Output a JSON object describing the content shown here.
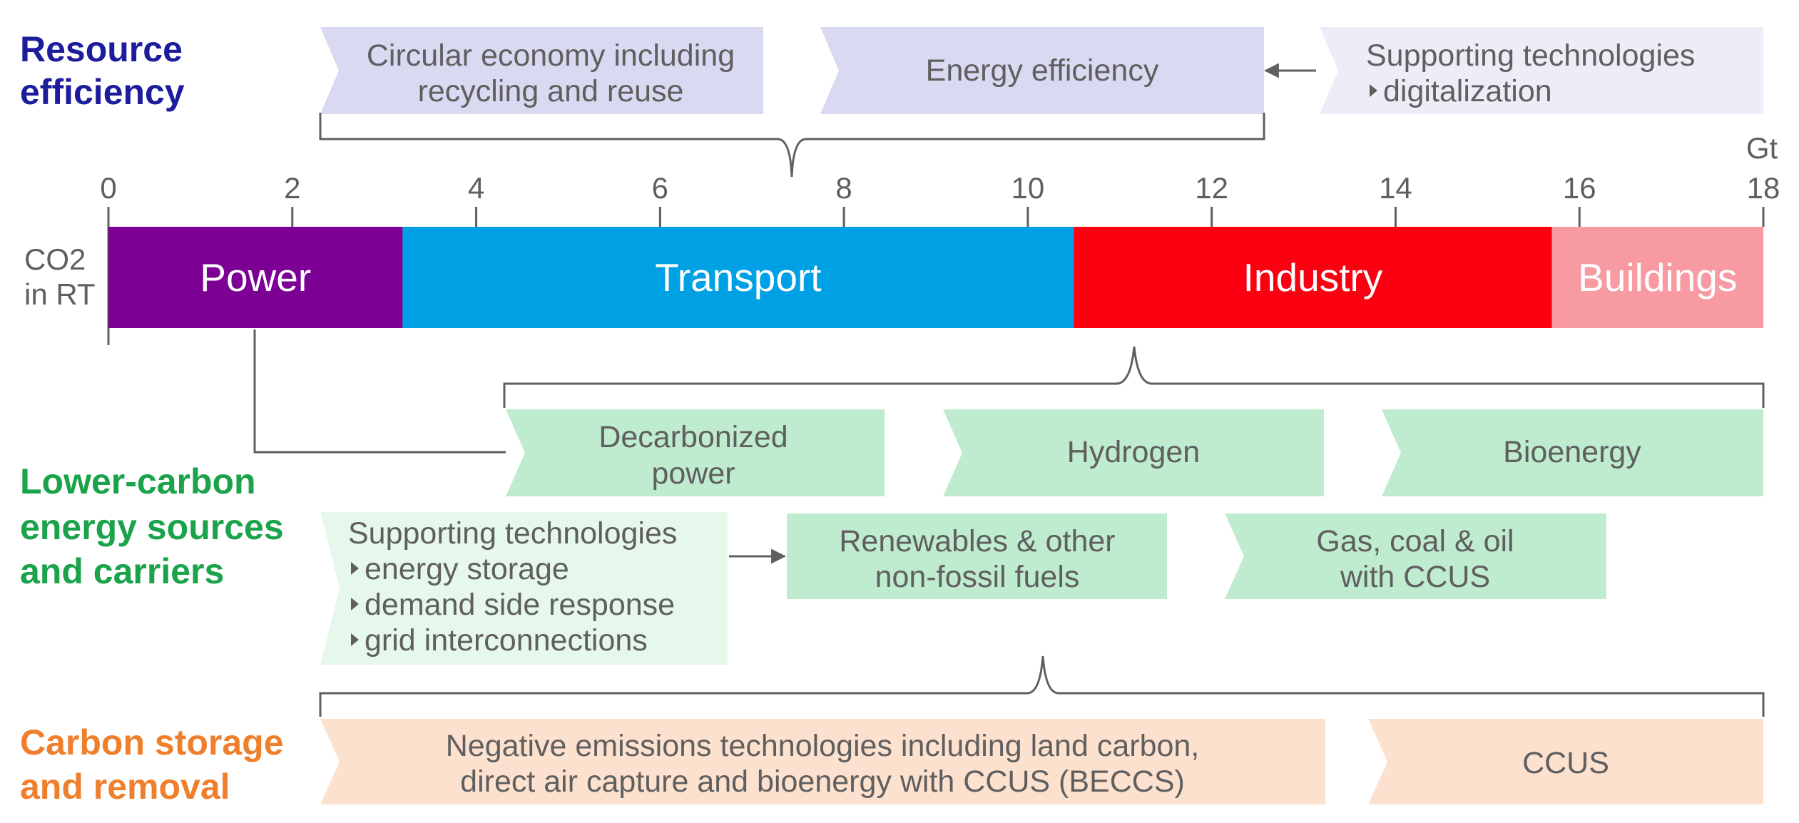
{
  "categories": {
    "resource": {
      "line1": "Resource",
      "line2": "efficiency",
      "color": "#1c1c9c"
    },
    "lower": {
      "line1": "Lower-carbon",
      "line2": "energy sources",
      "line3": "and carriers",
      "color": "#1aa34a"
    },
    "storage": {
      "line1": "Carbon storage",
      "line2": "and removal",
      "color": "#f07f2c"
    }
  },
  "axis": {
    "unit": "Gt",
    "ticks": [
      "0",
      "2",
      "4",
      "6",
      "8",
      "10",
      "12",
      "14",
      "16",
      "18"
    ],
    "bar_label_line1": "CO2",
    "bar_label_line2": "in RT",
    "min": 0,
    "max": 18
  },
  "sectors": [
    {
      "name": "Power",
      "start": 0,
      "end": 3.2,
      "color": "#7c0093"
    },
    {
      "name": "Transport",
      "start": 3.2,
      "end": 10.5,
      "color": "#00a0e4"
    },
    {
      "name": "Industry",
      "start": 10.5,
      "end": 15.7,
      "color": "#fa0011"
    },
    {
      "name": "Buildings",
      "start": 15.7,
      "end": 18,
      "color": "#f79aa1"
    }
  ],
  "resource_boxes": {
    "circular": {
      "line1": "Circular economy including",
      "line2": "recycling and reuse"
    },
    "efficiency": {
      "line1": "Energy efficiency"
    },
    "supporting": {
      "line1": "Supporting technologies",
      "line2": "digitalization"
    }
  },
  "lower_boxes": {
    "decarbonized": {
      "line1": "Decarbonized",
      "line2": "power"
    },
    "hydrogen": {
      "line1": "Hydrogen"
    },
    "bioenergy": {
      "line1": "Bioenergy"
    },
    "supporting": {
      "line1": "Supporting technologies",
      "line2": "energy storage",
      "line3": "demand side response",
      "line4": "grid interconnections"
    },
    "renewables": {
      "line1": "Renewables & other",
      "line2": "non-fossil fuels"
    },
    "gas": {
      "line1": "Gas, coal & oil",
      "line2": "with CCUS"
    }
  },
  "storage_boxes": {
    "negative": {
      "line1": "Negative emissions technologies including land carbon,",
      "line2": "direct air capture and bioenergy with CCUS (BECCS)"
    },
    "ccus": {
      "line1": "CCUS"
    }
  },
  "colors": {
    "resource_box": "#d9d9f2",
    "resource_box_light": "#ededf8",
    "lower_box": "#bfebcf",
    "lower_box_light": "#e6f7ec",
    "storage_box": "#fde1cf"
  }
}
